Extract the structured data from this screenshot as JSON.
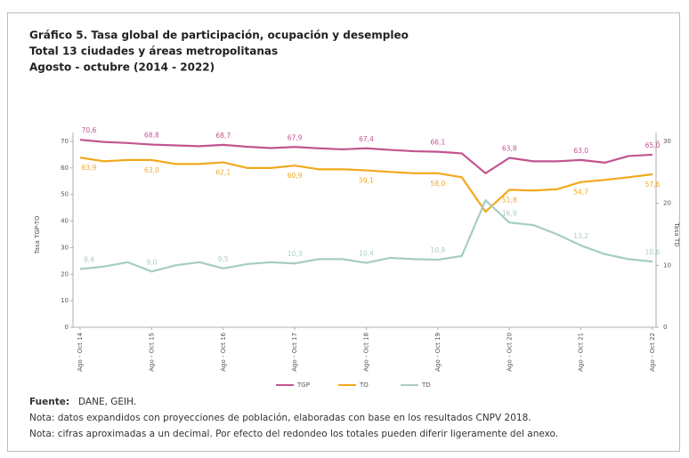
{
  "chart_data": {
    "type": "line",
    "title": "Gráfico 5. Tasa global de participación, ocupación y desempleo",
    "subtitle": "Total 13 ciudades y áreas metropolitanas",
    "period": "Agosto - octubre (2014 - 2022)",
    "ylabel": "Tasa TGP-TO",
    "y2label": "Tasa TD",
    "source_label": "Fuente:",
    "source": "DANE, GEIH.",
    "notes": [
      "Nota: datos expandidos con proyecciones de población, elaboradas con base en los resultados CNPV 2018.",
      "Nota: cifras aproximadas a un decimal. Por efecto del redondeo los totales pueden diferir ligeramente del anexo."
    ],
    "categories": [
      "Ago - Oct 14",
      null,
      null,
      "Ago - Oct 15",
      null,
      null,
      "Ago - Oct 16",
      null,
      null,
      "Ago - Oct 17",
      null,
      null,
      "Ago - Oct 18",
      null,
      null,
      "Ago - Oct 19",
      null,
      null,
      "Ago - Oct 20",
      null,
      null,
      "Ago - Oct 21",
      null,
      null,
      "Ago - Oct 22"
    ],
    "ylim": [
      0,
      70
    ],
    "yticks": [
      0,
      10,
      20,
      30,
      40,
      50,
      60,
      70
    ],
    "y2lim": [
      0,
      30
    ],
    "y2ticks": [
      0,
      10,
      20,
      30
    ],
    "legend": "bottom",
    "series": [
      {
        "name": "TGP",
        "color": "#c2548f",
        "values": [
          70.6,
          69.8,
          69.4,
          68.8,
          68.5,
          68.2,
          68.7,
          68.0,
          67.5,
          67.9,
          67.4,
          67.0,
          67.4,
          66.8,
          66.3,
          66.1,
          65.5,
          58.0,
          63.8,
          62.5,
          62.5,
          63.0,
          62.0,
          64.5,
          65.0
        ],
        "value_labels": [
          "70,6",
          null,
          null,
          "68,8",
          null,
          null,
          "68,7",
          null,
          null,
          "67,9",
          null,
          null,
          "67,4",
          null,
          null,
          "66,1",
          null,
          null,
          "63,8",
          null,
          null,
          "63,0",
          null,
          null,
          "65,0"
        ]
      },
      {
        "name": "TO",
        "color": "#f2a81d",
        "values": [
          63.9,
          62.5,
          63.0,
          63.0,
          61.5,
          61.5,
          62.1,
          60.0,
          60.0,
          60.9,
          59.5,
          59.5,
          59.1,
          58.5,
          58.0,
          58.0,
          56.5,
          43.5,
          51.8,
          51.5,
          52.0,
          54.7,
          55.5,
          56.5,
          57.6
        ],
        "value_labels": [
          "63,9",
          null,
          null,
          "63,0",
          null,
          null,
          "62,1",
          null,
          null,
          "60,9",
          null,
          null,
          "59,1",
          null,
          null,
          "58,0",
          null,
          null,
          "51,8",
          null,
          null,
          "54,7",
          null,
          null,
          "57,6"
        ]
      },
      {
        "name": "TD",
        "color": "#a6cdc3",
        "axis": "y2",
        "values": [
          9.4,
          9.8,
          10.5,
          9.0,
          10.0,
          10.5,
          9.5,
          10.2,
          10.5,
          10.3,
          11.0,
          11.0,
          10.4,
          11.2,
          11.0,
          10.9,
          11.5,
          20.5,
          16.9,
          16.5,
          15.0,
          13.2,
          11.8,
          11.0,
          10.6
        ],
        "value_labels": [
          "9,4",
          null,
          null,
          "9,0",
          null,
          null,
          "9,5",
          null,
          null,
          "10,3",
          null,
          null,
          "10,4",
          null,
          null,
          "10,9",
          null,
          null,
          "16,9",
          null,
          null,
          "13,2",
          null,
          null,
          "10,6"
        ]
      }
    ]
  }
}
